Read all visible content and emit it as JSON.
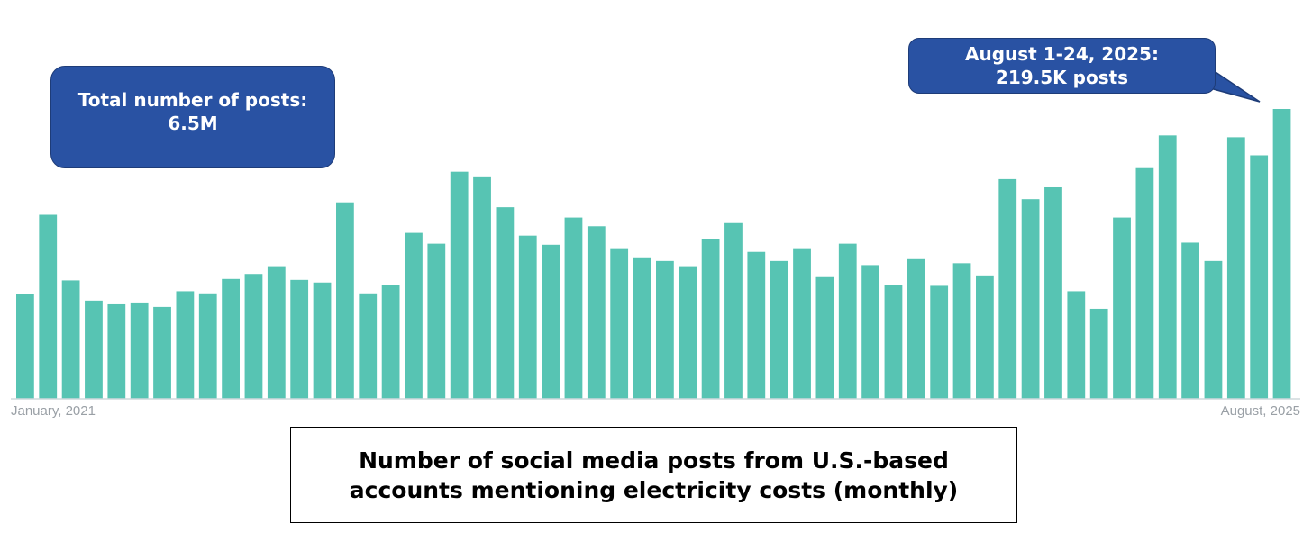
{
  "chart_data": {
    "type": "bar",
    "title": "Number of social media posts from U.S.-based accounts mentioning electricity costs (monthly)",
    "title_lines": [
      "Number of social media posts from U.S.-based",
      "accounts mentioning electricity costs (monthly)"
    ],
    "x_start_label": "January, 2021",
    "x_end_label": "August, 2025",
    "categories": [
      "2021-01",
      "2021-02",
      "2021-03",
      "2021-04",
      "2021-05",
      "2021-06",
      "2021-07",
      "2021-08",
      "2021-09",
      "2021-10",
      "2021-11",
      "2021-12",
      "2022-01",
      "2022-02",
      "2022-03",
      "2022-04",
      "2022-05",
      "2022-06",
      "2022-07",
      "2022-08",
      "2022-09",
      "2022-10",
      "2022-11",
      "2022-12",
      "2023-01",
      "2023-02",
      "2023-03",
      "2023-04",
      "2023-05",
      "2023-06",
      "2023-07",
      "2023-08",
      "2023-09",
      "2023-10",
      "2023-11",
      "2023-12",
      "2024-01",
      "2024-02",
      "2024-03",
      "2024-04",
      "2024-05",
      "2024-06",
      "2024-07",
      "2024-08",
      "2024-09",
      "2024-10",
      "2024-11",
      "2024-12",
      "2025-01",
      "2025-02",
      "2025-03",
      "2025-04",
      "2025-05",
      "2025-06",
      "2025-07",
      "2025-08"
    ],
    "values": [
      79.2,
      139.4,
      89.7,
      74.4,
      71.6,
      73.0,
      69.6,
      81.5,
      79.9,
      90.8,
      94.6,
      99.8,
      90.1,
      88.1,
      148.8,
      79.9,
      86.3,
      125.7,
      117.5,
      172.0,
      167.8,
      145.1,
      123.6,
      116.7,
      137.3,
      130.7,
      113.4,
      106.5,
      104.4,
      99.8,
      121.1,
      133.1,
      111.3,
      104.4,
      113.4,
      92.2,
      117.5,
      101.3,
      86.3,
      105.8,
      85.6,
      102.7,
      93.5,
      166.4,
      151.2,
      160.2,
      81.5,
      68.2,
      137.3,
      174.7,
      199.5,
      118.3,
      104.4,
      198.1,
      184.4,
      219.5
    ],
    "units": "posts (thousands)",
    "ylim": [
      0,
      225
    ],
    "grid": false,
    "color": "#57c4b3",
    "annotations": [
      {
        "lines": [
          "Total number of posts:",
          "6.5M"
        ]
      },
      {
        "lines": [
          "August 1-24, 2025:",
          "219.5K posts"
        ]
      }
    ]
  }
}
